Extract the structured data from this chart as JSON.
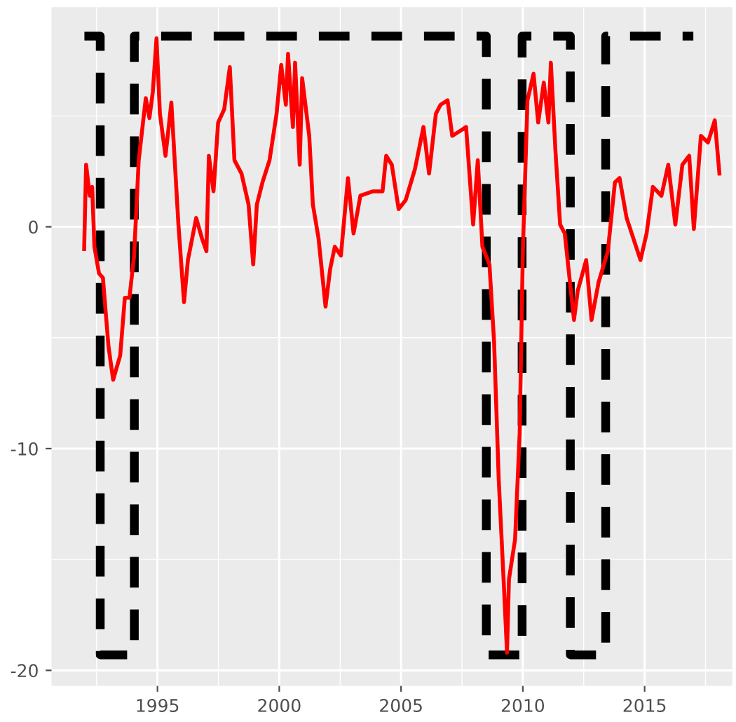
{
  "chart_data": {
    "type": "line",
    "xlim": [
      1990.65,
      2018.6
    ],
    "xticks": [
      1995,
      2000,
      2005,
      2010,
      2015
    ],
    "ylim": [
      -20.7,
      9.9
    ],
    "yticks": [
      -20,
      -10,
      0
    ],
    "grid": true,
    "series": [
      {
        "type": "step",
        "color": "#000000",
        "line_style": "dashed",
        "x": [
          1992.0,
          1992.65,
          1994.05,
          2008.5,
          2009.97,
          2011.95,
          2013.4,
          2017.0
        ],
        "values": [
          8.6,
          -19.3,
          8.6,
          -19.3,
          8.6,
          -19.3,
          8.6,
          8.6
        ]
      },
      {
        "color": "#ff0000",
        "line_style": "solid",
        "x": [
          1991.99,
          1992.07,
          1992.22,
          1992.32,
          1992.41,
          1992.6,
          1992.76,
          1992.99,
          1993.18,
          1993.47,
          1993.66,
          1993.85,
          1994.04,
          1994.23,
          1994.52,
          1994.67,
          1994.81,
          1994.96,
          1995.1,
          1995.33,
          1995.57,
          1995.86,
          1996.09,
          1996.25,
          1996.59,
          1996.82,
          1997.01,
          1997.11,
          1997.3,
          1997.49,
          1997.74,
          1997.97,
          1998.16,
          1998.45,
          1998.74,
          1998.93,
          1999.08,
          1999.31,
          1999.6,
          1999.89,
          2000.08,
          2000.27,
          2000.36,
          2000.56,
          2000.65,
          2000.84,
          2000.94,
          2001.23,
          2001.38,
          2001.61,
          2001.9,
          2002.09,
          2002.28,
          2002.53,
          2002.82,
          2003.05,
          2003.33,
          2003.85,
          2004.24,
          2004.39,
          2004.62,
          2004.9,
          2005.19,
          2005.57,
          2005.92,
          2006.15,
          2006.43,
          2006.62,
          2006.91,
          2007.1,
          2007.39,
          2007.67,
          2007.96,
          2008.15,
          2008.34,
          2008.63,
          2008.82,
          2009.01,
          2009.24,
          2009.35,
          2009.43,
          2009.68,
          2009.87,
          2010.0,
          2010.19,
          2010.44,
          2010.63,
          2010.86,
          2011.05,
          2011.15,
          2011.34,
          2011.53,
          2011.72,
          2012.1,
          2012.25,
          2012.6,
          2012.82,
          2013.11,
          2013.49,
          2013.78,
          2013.97,
          2014.26,
          2014.83,
          2015.08,
          2015.34,
          2015.69,
          2015.97,
          2016.26,
          2016.55,
          2016.83,
          2017.02,
          2017.31,
          2017.6,
          2017.88,
          2018.07
        ],
        "values": [
          -1.0,
          2.8,
          1.4,
          1.8,
          -0.9,
          -2.1,
          -2.3,
          -5.4,
          -6.9,
          -5.8,
          -3.2,
          -3.2,
          -1.3,
          3.0,
          5.8,
          4.9,
          6.1,
          8.5,
          5.1,
          3.2,
          5.6,
          0.1,
          -3.4,
          -1.5,
          0.4,
          -0.5,
          -1.1,
          3.2,
          1.6,
          4.7,
          5.3,
          7.2,
          3.0,
          2.4,
          1.0,
          -1.7,
          1.0,
          2.0,
          3.0,
          5.1,
          7.3,
          5.5,
          7.8,
          4.5,
          7.4,
          2.8,
          6.7,
          4.1,
          1.0,
          -0.5,
          -3.6,
          -1.9,
          -0.9,
          -1.3,
          2.2,
          -0.3,
          1.4,
          1.6,
          1.6,
          3.2,
          2.8,
          0.8,
          1.2,
          2.6,
          4.5,
          2.4,
          5.1,
          5.5,
          5.7,
          4.1,
          4.3,
          4.5,
          0.1,
          3.0,
          -0.9,
          -1.7,
          -5.2,
          -11.4,
          -16.6,
          -19.2,
          -15.9,
          -14.1,
          -9.3,
          -1.1,
          5.7,
          6.9,
          4.7,
          6.5,
          4.7,
          7.4,
          3.4,
          0.1,
          -0.3,
          -4.2,
          -2.9,
          -1.5,
          -4.2,
          -2.5,
          -1.1,
          2.0,
          2.2,
          0.4,
          -1.5,
          -0.3,
          1.8,
          1.4,
          2.8,
          0.1,
          2.8,
          3.2,
          -0.1,
          4.1,
          3.8,
          4.8,
          2.4
        ]
      }
    ]
  }
}
